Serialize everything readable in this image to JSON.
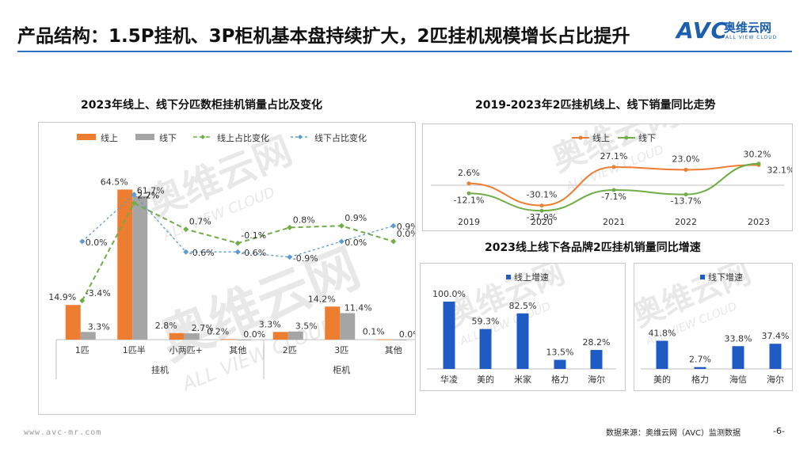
{
  "page": {
    "title": "产品结构：1.5P挂机、3P柜机基本盘持续扩大，2匹挂机规模增长占比提升",
    "logo_text": "AVC",
    "logo_cn": "奥维云网",
    "logo_en": "ALL VIEW CLOUD",
    "footer_url": "www.avc-mr.com",
    "footer_source": "数据来源：奥维云网（AVC）监测数据",
    "page_number": "-6-",
    "watermark_cn": "奥维云网",
    "watermark_en": "ALL VIEW CLOUD",
    "colors": {
      "accent_blue": "#1b5fae",
      "accent_orange": "#f07b1f"
    }
  },
  "chart_data": [
    {
      "type": "bar",
      "title": "2023年线上、线下分匹数柜挂机销量占比及变化",
      "categories": [
        "1匹",
        "1匹半",
        "小两匹+",
        "其他",
        "2匹",
        "3匹",
        "其他"
      ],
      "groups": [
        {
          "label": "挂机"
        },
        {
          "label": "柜机"
        }
      ],
      "series": [
        {
          "name": "线上",
          "kind": "bar",
          "color": "#ed7d31",
          "values": [
            14.9,
            64.5,
            2.8,
            0.2,
            3.3,
            14.2,
            0.1
          ],
          "labels": [
            "14.9%",
            "64.5%",
            "2.8%",
            "0.2%",
            "3.3%",
            "14.2%",
            "0.1%"
          ]
        },
        {
          "name": "线下",
          "kind": "bar",
          "color": "#a5a5a5",
          "values": [
            3.3,
            61.7,
            2.7,
            0.0,
            3.5,
            11.4,
            0.0
          ],
          "labels": [
            "3.3%",
            "61.7%",
            "2.7%",
            "0.0%",
            "3.5%",
            "11.4%",
            "0.0%"
          ]
        },
        {
          "name": "线上占比变化",
          "kind": "line",
          "color": "#70ad47",
          "values": [
            -3.4,
            2.2,
            0.7,
            -0.1,
            0.8,
            0.9,
            0.0
          ],
          "labels": [
            "-3.4%",
            "2.2%",
            "0.7%",
            "-0.1%",
            "0.8%",
            "0.9%",
            "0.0%"
          ]
        },
        {
          "name": "线下占比变化",
          "kind": "line",
          "color": "#5b9bd5",
          "values": [
            0.0,
            2.7,
            -0.6,
            -0.6,
            -0.9,
            0.0,
            0.9
          ],
          "labels": [
            "0.0%",
            "2.7%",
            "-0.6%",
            "-0.6%",
            "-0.9%",
            "0.0%",
            "0.9%"
          ]
        }
      ]
    },
    {
      "type": "line",
      "title": "2019-2023年2匹挂机线上、线下销量同比走势",
      "x": [
        "2019",
        "2020",
        "2021",
        "2022",
        "2023"
      ],
      "series": [
        {
          "name": "线上",
          "color": "#ed7d31",
          "values": [
            2.6,
            -30.1,
            27.1,
            23.0,
            30.2
          ],
          "labels": [
            "2.6%",
            "-30.1%",
            "27.1%",
            "23.0%",
            "30.2%"
          ]
        },
        {
          "name": "线下",
          "color": "#70ad47",
          "values": [
            -12.1,
            -37.9,
            -7.1,
            -13.7,
            32.1
          ],
          "labels": [
            "-12.1%",
            "-37.9%",
            "-7.1%",
            "-13.7%",
            "32.1%"
          ]
        }
      ]
    },
    {
      "type": "bar",
      "title": "2023线上线下各品牌2匹挂机销量同比增速",
      "subtitle": "线上增速",
      "categories": [
        "华凌",
        "美的",
        "米家",
        "格力",
        "海尔"
      ],
      "values": [
        100.0,
        59.3,
        82.5,
        13.5,
        28.2
      ],
      "labels": [
        "100.0%",
        "59.3%",
        "82.5%",
        "13.5%",
        "28.2%"
      ],
      "color": "#1f5bc4"
    },
    {
      "type": "bar",
      "subtitle": "线下增速",
      "categories": [
        "美的",
        "格力",
        "海信",
        "海尔"
      ],
      "values": [
        41.8,
        2.7,
        33.8,
        37.4
      ],
      "labels": [
        "41.8%",
        "2.7%",
        "33.8%",
        "37.4%"
      ],
      "color": "#1f5bc4"
    }
  ]
}
